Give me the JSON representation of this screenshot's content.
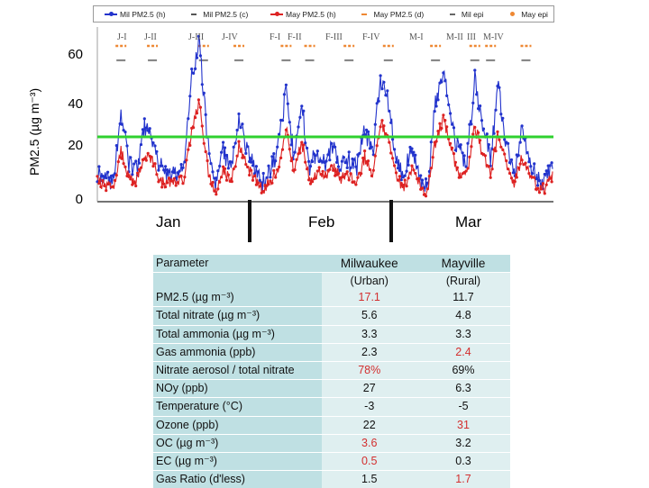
{
  "chart_data": {
    "type": "line",
    "ylabel": "PM2.5 (µg m⁻³)",
    "ylim": [
      0,
      70
    ],
    "yticks": [
      0,
      20,
      40,
      60
    ],
    "x_month_labels": [
      "Jan",
      "Feb",
      "Mar"
    ],
    "reference_line": {
      "value": 26,
      "color": "#2fd12f"
    },
    "legend": [
      {
        "label": "Mil PM2.5 (h)",
        "color": "#2233cc",
        "style": "line-dot"
      },
      {
        "label": "Mil PM2.5 (c)",
        "color": "#555555",
        "style": "dash"
      },
      {
        "label": "May PM2.5 (h)",
        "color": "#dd2222",
        "style": "line-dot"
      },
      {
        "label": "May PM2.5 (d)",
        "color": "#ee8833",
        "style": "dash"
      },
      {
        "label": "Mil epi",
        "color": "#666666",
        "style": "dash"
      },
      {
        "label": "May epi",
        "color": "#ee8833",
        "style": "dot"
      }
    ],
    "episodes": [
      {
        "label": "J-I",
        "center_day": 6
      },
      {
        "label": "J-II",
        "center_day": 14
      },
      {
        "label": "J-III",
        "center_day": 27
      },
      {
        "label": "J-IV",
        "center_day": 36
      },
      {
        "label": "F-I",
        "center_day": 48
      },
      {
        "label": "F-II",
        "center_day": 54
      },
      {
        "label": "F-III",
        "center_day": 64
      },
      {
        "label": "F-IV",
        "center_day": 74
      },
      {
        "label": "M-I",
        "center_day": 86
      },
      {
        "label": "M-II",
        "center_day": 96
      },
      {
        "label": "III",
        "center_day": 100
      },
      {
        "label": "M-IV",
        "center_day": 109
      }
    ],
    "series": [
      {
        "name": "Mil PM2.5 (h)",
        "color": "#2233cc",
        "x_day": [
          0,
          2,
          4,
          6,
          8,
          10,
          12,
          14,
          16,
          18,
          20,
          22,
          24,
          26,
          28,
          30,
          32,
          34,
          36,
          38,
          40,
          42,
          44,
          46,
          48,
          50,
          52,
          54,
          56,
          58,
          60,
          62,
          64,
          66,
          68,
          70,
          72,
          74,
          76,
          78,
          80,
          82,
          84,
          86,
          88,
          90,
          92,
          94,
          96,
          98,
          100,
          102,
          104,
          106,
          108,
          110,
          112,
          114,
          116
        ],
        "values": [
          12,
          10,
          8,
          35,
          16,
          12,
          30,
          25,
          14,
          12,
          10,
          14,
          50,
          64,
          24,
          5,
          20,
          12,
          34,
          20,
          15,
          8,
          12,
          22,
          44,
          18,
          38,
          14,
          20,
          16,
          22,
          14,
          16,
          14,
          30,
          18,
          50,
          40,
          16,
          10,
          22,
          10,
          6,
          40,
          54,
          30,
          20,
          16,
          50,
          30,
          18,
          46,
          22,
          12,
          28,
          14,
          10,
          8,
          18
        ]
      },
      {
        "name": "May PM2.5 (h)",
        "color": "#dd2222",
        "x_day": [
          0,
          2,
          4,
          6,
          8,
          10,
          12,
          14,
          16,
          18,
          20,
          22,
          24,
          26,
          28,
          30,
          32,
          34,
          36,
          38,
          40,
          42,
          44,
          46,
          48,
          50,
          52,
          54,
          56,
          58,
          60,
          62,
          64,
          66,
          68,
          70,
          72,
          74,
          76,
          78,
          80,
          82,
          84,
          86,
          88,
          90,
          92,
          94,
          96,
          98,
          100,
          102,
          104,
          106,
          108,
          110,
          112,
          114,
          116
        ],
        "values": [
          8,
          6,
          6,
          20,
          10,
          8,
          18,
          16,
          8,
          7,
          8,
          10,
          28,
          40,
          14,
          3,
          12,
          8,
          22,
          14,
          10,
          5,
          8,
          14,
          30,
          12,
          24,
          8,
          12,
          10,
          14,
          9,
          10,
          8,
          18,
          12,
          32,
          26,
          10,
          6,
          14,
          6,
          4,
          24,
          34,
          20,
          12,
          10,
          30,
          20,
          12,
          28,
          14,
          8,
          18,
          10,
          6,
          5,
          12
        ]
      }
    ]
  },
  "table": {
    "headers": {
      "parameter": "Parameter",
      "milwaukee": "Milwaukee",
      "mayville": "Mayville"
    },
    "sub_headers": {
      "milwaukee": "(Urban)",
      "mayville": "(Rural)"
    },
    "rows": [
      {
        "parameter": "PM2.5 (µg m⁻³)",
        "milwaukee": "17.1",
        "mayville": "11.7"
      },
      {
        "parameter": "Total nitrate (µg m⁻³)",
        "milwaukee": "5.6",
        "mayville": "4.8"
      },
      {
        "parameter": "Total ammonia (µg m⁻³)",
        "milwaukee": "3.3",
        "mayville": "3.3"
      },
      {
        "parameter": "Gas ammonia (ppb)",
        "milwaukee": "2.3",
        "mayville": "2.4"
      },
      {
        "parameter": "Nitrate aerosol / total nitrate",
        "milwaukee": "78%",
        "mayville": "69%"
      },
      {
        "parameter": "NOy (ppb)",
        "milwaukee": "27",
        "mayville": "6.3"
      },
      {
        "parameter": "Temperature (°C)",
        "milwaukee": "-3",
        "mayville": "-5"
      },
      {
        "parameter": "Ozone (ppb)",
        "milwaukee": "22",
        "mayville": "31"
      },
      {
        "parameter": "OC (µg m⁻³)",
        "milwaukee": "3.6",
        "mayville": "3.2"
      },
      {
        "parameter": "EC (µg m⁻³)",
        "milwaukee": "0.5",
        "mayville": "0.3"
      },
      {
        "parameter": "Gas Ratio (d'less)",
        "milwaukee": "1.5",
        "mayville": "1.7"
      }
    ],
    "highlight_color": "#d32f2f"
  }
}
